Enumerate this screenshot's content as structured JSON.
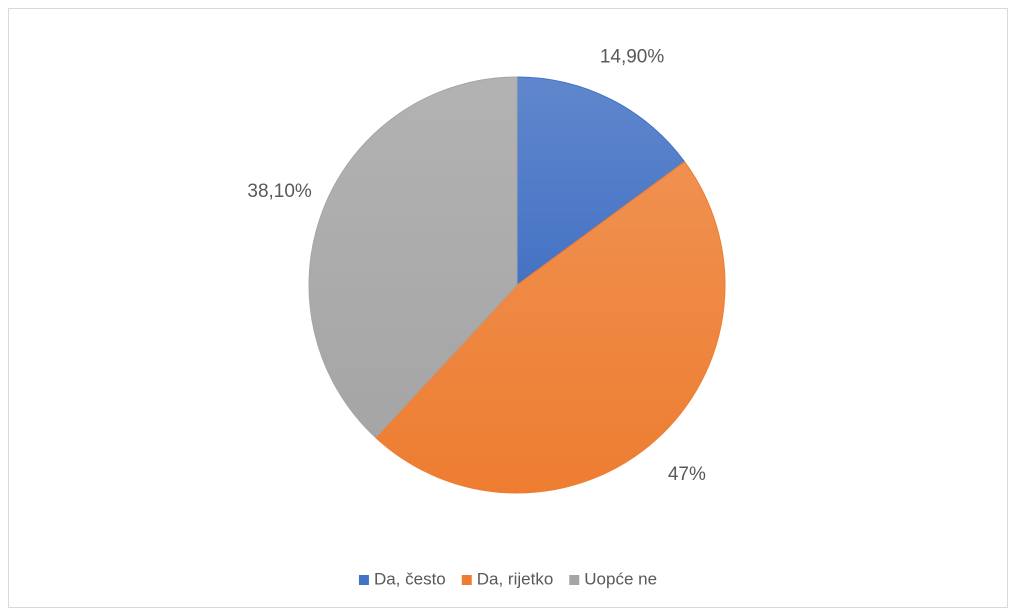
{
  "chart_data": {
    "type": "pie",
    "categories": [
      "Da, često",
      "Da, rijetko",
      "Uopće ne"
    ],
    "values": [
      14.9,
      47,
      38.1
    ],
    "value_labels": [
      "14,90%",
      "47%",
      "38,10%"
    ],
    "colors": [
      "#4472c4",
      "#ed7d31",
      "#a5a5a5"
    ],
    "legend": "bottom"
  }
}
